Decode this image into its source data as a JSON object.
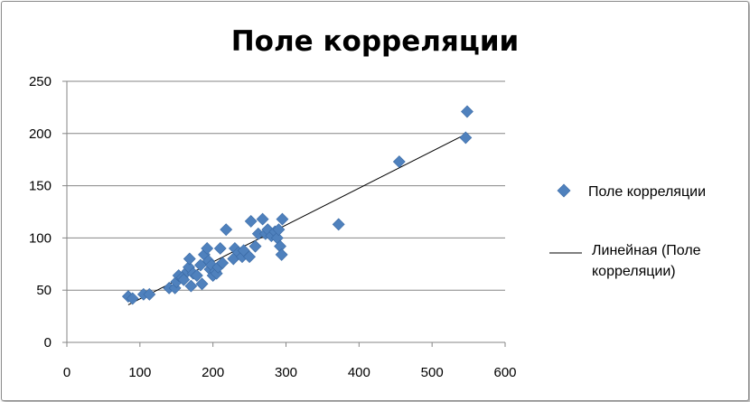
{
  "colors": {
    "marker": "#4f81bd",
    "marker_stroke": "#3a6aa5",
    "trendline": "#000000",
    "grid": "#868686",
    "axis": "#868686"
  },
  "legend": {
    "series_label": "Поле корреляции",
    "trend_label_line1": "Линейная (Поле",
    "trend_label_line2": "корреляции)"
  },
  "chart_data": {
    "type": "scatter",
    "title": "Поле корреляции",
    "xlabel": "",
    "ylabel": "",
    "xlim": [
      0,
      600
    ],
    "ylim": [
      0,
      250
    ],
    "x_ticks": [
      0,
      100,
      200,
      300,
      400,
      500,
      600
    ],
    "y_ticks": [
      0,
      50,
      100,
      150,
      200,
      250
    ],
    "grid": "horizontal major gridlines",
    "legend_position": "right",
    "series": [
      {
        "name": "Поле корреляции",
        "marker": "diamond",
        "points": [
          [
            84,
            44
          ],
          [
            90,
            42
          ],
          [
            105,
            46
          ],
          [
            113,
            46
          ],
          [
            140,
            52
          ],
          [
            148,
            52
          ],
          [
            150,
            58
          ],
          [
            153,
            64
          ],
          [
            158,
            62
          ],
          [
            160,
            60
          ],
          [
            165,
            68
          ],
          [
            167,
            72
          ],
          [
            168,
            80
          ],
          [
            170,
            54
          ],
          [
            173,
            66
          ],
          [
            178,
            64
          ],
          [
            183,
            74
          ],
          [
            185,
            56
          ],
          [
            188,
            84
          ],
          [
            192,
            90
          ],
          [
            194,
            78
          ],
          [
            196,
            70
          ],
          [
            198,
            74
          ],
          [
            200,
            64
          ],
          [
            203,
            68
          ],
          [
            205,
            66
          ],
          [
            207,
            72
          ],
          [
            210,
            90
          ],
          [
            213,
            76
          ],
          [
            218,
            108
          ],
          [
            228,
            80
          ],
          [
            230,
            90
          ],
          [
            235,
            86
          ],
          [
            240,
            82
          ],
          [
            242,
            88
          ],
          [
            250,
            82
          ],
          [
            252,
            116
          ],
          [
            258,
            92
          ],
          [
            262,
            104
          ],
          [
            268,
            118
          ],
          [
            272,
            104
          ],
          [
            275,
            108
          ],
          [
            280,
            102
          ],
          [
            285,
            106
          ],
          [
            288,
            100
          ],
          [
            290,
            108
          ],
          [
            292,
            92
          ],
          [
            294,
            84
          ],
          [
            295,
            118
          ],
          [
            372,
            113
          ],
          [
            455,
            173
          ],
          [
            546,
            196
          ],
          [
            548,
            221
          ]
        ]
      }
    ],
    "trendline": {
      "name": "Линейная (Поле корреляции)",
      "type": "linear",
      "x_range": [
        84,
        548
      ],
      "start": [
        84,
        36
      ],
      "end": [
        548,
        200
      ]
    }
  }
}
